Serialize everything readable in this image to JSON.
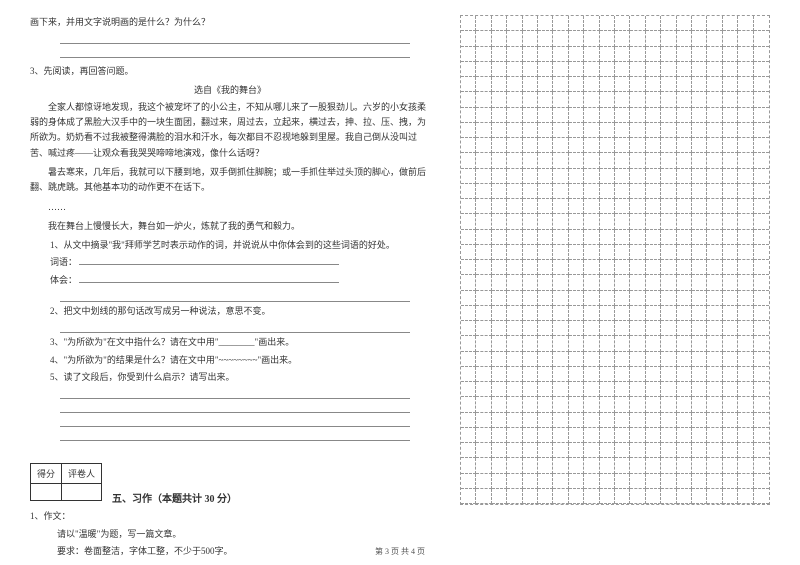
{
  "q2_tail": "画下来，并用文字说明画的是什么？为什么？",
  "q3_intro": "3、先阅读，再回答问题。",
  "passage_title": "选自《我的舞台》",
  "passage": {
    "p1": "全家人都惊讶地发现，我这个被宠坏了的小公主，不知从哪儿来了一股狠劲儿。六岁的小女孩柔弱的身体成了黑脸大汉手中的一块生面团，翻过来，周过去，立起来，横过去，抻、拉、压、拽，为所欲为。奶奶看不过我被整得满脸的泪水和汗水，每次都目不忍视地躲到里屋。我自己倒从没叫过苦、喊过疼——让观众看我哭哭啼啼地演戏，像什么话呀？",
    "p2": "暑去寒来，几年后，我就可以下腰到地，双手倒抓住脚腕；或一手抓住举过头顶的脚心，做前后翻、跳虎跳。其他基本功的动作更不在话下。",
    "p3": "……",
    "p4": "我在舞台上慢慢长大，舞台如一炉火，炼就了我的勇气和毅力。"
  },
  "questions": {
    "q1": "1、从文中摘录\"我\"拜师学艺时表示动作的词，并说说从中你体会到的这些词语的好处。",
    "q1_labels": {
      "words": "词语：",
      "feel": "体会："
    },
    "q2": "2、把文中划线的那句话改写成另一种说法，意思不变。",
    "q3": "3、\"为所欲为\"在文中指什么？请在文中用\"________\"画出来。",
    "q4": "4、\"为所欲为\"的结果是什么？请在文中用\"~~~~~~~~\"画出来。",
    "q5": "5、读了文段后，你受到什么启示？请写出来。"
  },
  "score_table": {
    "header1": "得分",
    "header2": "评卷人"
  },
  "section5": {
    "title": "五、习作（本题共计 30 分）",
    "q1": "1、作文：",
    "req1": "请以\"温暖\"为题，写一篇文章。",
    "req2": "要求：卷面整洁，字体工整，不少于500字。"
  },
  "footer": "第 3 页 共 4 页",
  "grid": {
    "cols": 20,
    "rows": 32,
    "border_color": "#999999",
    "border_style": "dashed"
  },
  "colors": {
    "text": "#333333",
    "background": "#ffffff",
    "line": "#888888"
  },
  "fonts": {
    "body_size": 9,
    "title_size": 10
  }
}
